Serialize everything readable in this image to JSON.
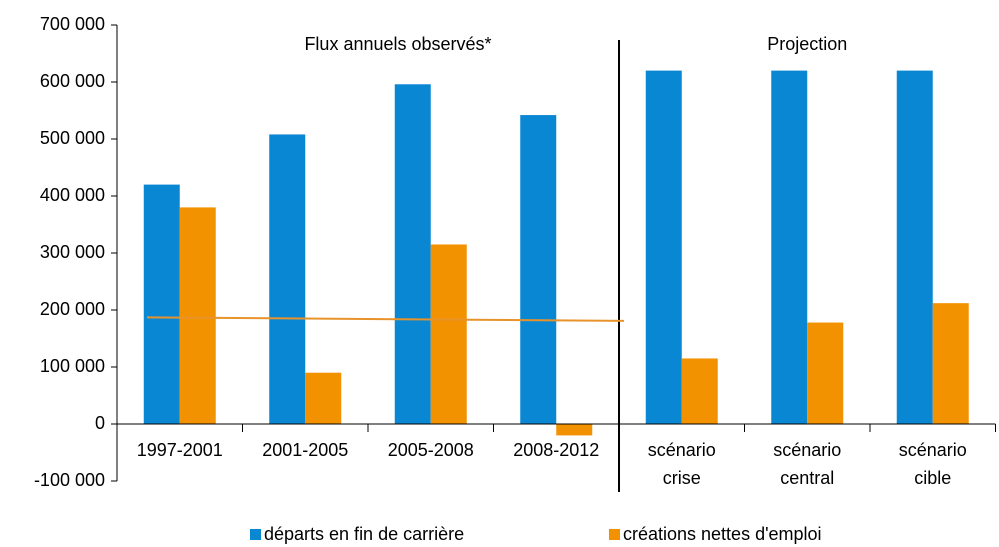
{
  "chart_data": {
    "type": "bar",
    "categories": [
      "1997-2001",
      "2001-2005",
      "2005-2008",
      "2008-2012",
      "scénario crise",
      "scénario central",
      "scénario cible"
    ],
    "series": [
      {
        "name": "départs en fin de carrière",
        "color": "#0a87d2",
        "values": [
          420000,
          508000,
          596000,
          542000,
          620000,
          620000,
          620000
        ]
      },
      {
        "name": "créations nettes d'emploi",
        "color": "#f39200",
        "values": [
          380000,
          90000,
          315000,
          -20000,
          115000,
          178000,
          212000
        ]
      }
    ],
    "reference_line": {
      "color": "#e8922a",
      "values": [
        187000,
        181000
      ]
    },
    "annotations": [
      "Flux annuels observés*",
      "Projection"
    ],
    "ylim": [
      -100000,
      700000
    ],
    "yticks": [
      {
        "value": -100000,
        "label": "-100 000"
      },
      {
        "value": 0,
        "label": "0"
      },
      {
        "value": 100000,
        "label": "100 000"
      },
      {
        "value": 200000,
        "label": "200 000"
      },
      {
        "value": 300000,
        "label": "300 000"
      },
      {
        "value": 400000,
        "label": "400 000"
      },
      {
        "value": 500000,
        "label": "500 000"
      },
      {
        "value": 600000,
        "label": "600 000"
      },
      {
        "value": 700000,
        "label": "700 000"
      }
    ],
    "legend": "bottom"
  }
}
